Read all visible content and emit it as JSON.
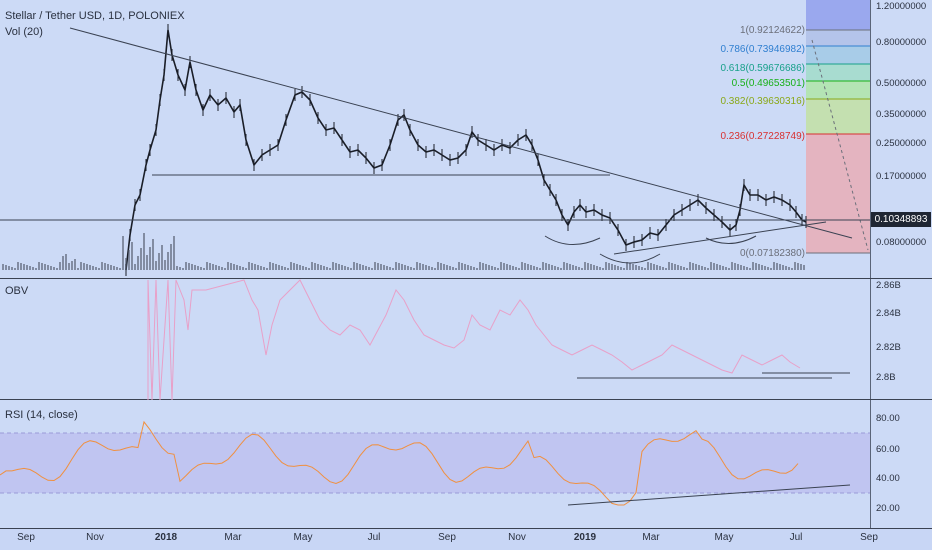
{
  "main_title": "Stellar / Tether USD, 1D, POLONIEX",
  "vol_label": "Vol (20)",
  "obv_label": "OBV",
  "rsi_label": "RSI (14, close)",
  "price_axis": [
    "1.20000000",
    "0.80000000",
    "0.50000000",
    "0.35000000",
    "0.25000000",
    "0.17000000",
    "0.08000000"
  ],
  "current_price": "0.10348893",
  "fib_levels": [
    {
      "label": "1(0.92124622)",
      "color": "#6b6f7a"
    },
    {
      "label": "0.786(0.73946982)",
      "color": "#2f7fd0"
    },
    {
      "label": "0.618(0.59676686)",
      "color": "#18a08a"
    },
    {
      "label": "0.5(0.49653501)",
      "color": "#18b018"
    },
    {
      "label": "0.382(0.39630316)",
      "color": "#8aa818"
    },
    {
      "label": "0.236(0.27228749)",
      "color": "#d83030"
    },
    {
      "label": "0(0.07182380)",
      "color": "#6b6f7a"
    }
  ],
  "obv_axis": [
    "2.86B",
    "2.84B",
    "2.82B",
    "2.8B"
  ],
  "rsi_axis": [
    "80.00",
    "60.00",
    "40.00",
    "20.00"
  ],
  "x_labels": [
    "Sep",
    "Nov",
    "2018",
    "Mar",
    "May",
    "Jul",
    "Sep",
    "Nov",
    "2019",
    "Mar",
    "May",
    "Jul",
    "Sep"
  ],
  "colors": {
    "background": "#ccdaf6",
    "obv_line": "#e8a0c8",
    "rsi_line": "#f09040",
    "rsi_band": "#b8b8ee",
    "candle": "#1a1e28"
  }
}
